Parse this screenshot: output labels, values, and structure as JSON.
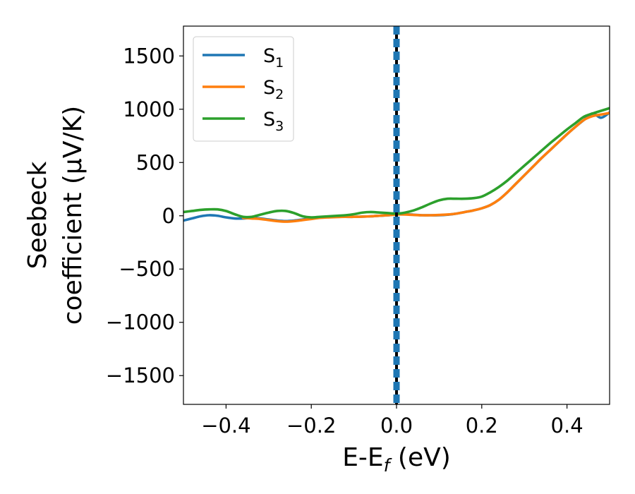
{
  "chart_data": {
    "type": "line",
    "xlabel": "E-E",
    "xlabel_sub": "f",
    "xlabel_unit": " (eV)",
    "ylabel_line1": "Seebeck",
    "ylabel_line2": "coefficient  (μV/K)",
    "xlim": [
      -0.5,
      0.5
    ],
    "ylim": [
      -1770,
      1780
    ],
    "xticks": [
      -0.4,
      -0.2,
      0.0,
      0.2,
      0.4
    ],
    "xtick_labels": [
      "−0.4",
      "−0.2",
      "0.0",
      "0.2",
      "0.4"
    ],
    "yticks": [
      -1500,
      -1000,
      -500,
      0,
      500,
      1000,
      1500
    ],
    "ytick_labels": [
      "−1500",
      "−1000",
      "−500",
      "0",
      "500",
      "1000",
      "1500"
    ],
    "grid": false,
    "legend_position": "top-left",
    "fermi_line": {
      "x": 0.0
    },
    "series": [
      {
        "name": "S",
        "sub": "1",
        "color": "#1f77b4",
        "x": [
          -0.5,
          -0.48,
          -0.46,
          -0.44,
          -0.42,
          -0.4,
          -0.38,
          -0.36,
          -0.34,
          -0.32,
          -0.3,
          -0.28,
          -0.26,
          -0.24,
          -0.22,
          -0.2,
          -0.18,
          -0.16,
          -0.14,
          -0.12,
          -0.1,
          -0.08,
          -0.06,
          -0.04,
          -0.02,
          0.0,
          0.02,
          0.04,
          0.06,
          0.08,
          0.1,
          0.12,
          0.14,
          0.16,
          0.18,
          0.2,
          0.22,
          0.24,
          0.26,
          0.28,
          0.3,
          0.32,
          0.34,
          0.36,
          0.38,
          0.4,
          0.42,
          0.44,
          0.46,
          0.48,
          0.5
        ],
        "y": [
          -45,
          -25,
          -5,
          5,
          0,
          -15,
          -25,
          -25,
          -20,
          -25,
          -35,
          -45,
          -50,
          -45,
          -35,
          -25,
          -15,
          -10,
          -10,
          -10,
          -10,
          -8,
          -5,
          0,
          5,
          15,
          15,
          10,
          5,
          5,
          5,
          10,
          20,
          35,
          50,
          70,
          100,
          150,
          220,
          300,
          380,
          460,
          540,
          615,
          690,
          765,
          835,
          900,
          960,
          920,
          970
        ]
      },
      {
        "name": "S",
        "sub": "2",
        "color": "#ff7f0e",
        "x": [
          -0.36,
          -0.34,
          -0.32,
          -0.3,
          -0.28,
          -0.26,
          -0.24,
          -0.22,
          -0.2,
          -0.18,
          -0.16,
          -0.14,
          -0.12,
          -0.1,
          -0.08,
          -0.06,
          -0.04,
          -0.02,
          0.0,
          0.02,
          0.04,
          0.06,
          0.08,
          0.1,
          0.12,
          0.14,
          0.16,
          0.18,
          0.2,
          0.22,
          0.24,
          0.26,
          0.28,
          0.3,
          0.32,
          0.34,
          0.36,
          0.38,
          0.4,
          0.42,
          0.44,
          0.46,
          0.48,
          0.5
        ],
        "y": [
          -20,
          -25,
          -30,
          -40,
          -50,
          -55,
          -50,
          -40,
          -30,
          -20,
          -15,
          -12,
          -10,
          -10,
          -8,
          -5,
          0,
          5,
          12,
          12,
          8,
          5,
          5,
          8,
          12,
          20,
          35,
          50,
          70,
          100,
          150,
          220,
          300,
          380,
          460,
          540,
          615,
          690,
          765,
          835,
          900,
          935,
          950,
          965
        ]
      },
      {
        "name": "S",
        "sub": "3",
        "color": "#2ca02c",
        "x": [
          -0.5,
          -0.48,
          -0.46,
          -0.44,
          -0.42,
          -0.4,
          -0.38,
          -0.36,
          -0.34,
          -0.32,
          -0.3,
          -0.28,
          -0.26,
          -0.24,
          -0.22,
          -0.2,
          -0.18,
          -0.16,
          -0.14,
          -0.12,
          -0.1,
          -0.08,
          -0.06,
          -0.04,
          -0.02,
          0.0,
          0.02,
          0.04,
          0.06,
          0.08,
          0.1,
          0.12,
          0.14,
          0.16,
          0.18,
          0.2,
          0.22,
          0.24,
          0.26,
          0.28,
          0.3,
          0.32,
          0.34,
          0.36,
          0.38,
          0.4,
          0.42,
          0.44,
          0.46,
          0.48,
          0.5
        ],
        "y": [
          35,
          45,
          55,
          60,
          60,
          45,
          15,
          -10,
          -10,
          10,
          30,
          45,
          45,
          25,
          -5,
          -15,
          -10,
          -5,
          0,
          5,
          15,
          30,
          35,
          30,
          25,
          20,
          30,
          50,
          80,
          115,
          145,
          160,
          160,
          160,
          165,
          180,
          220,
          270,
          330,
          400,
          470,
          540,
          610,
          680,
          745,
          810,
          870,
          930,
          960,
          985,
          1010
        ]
      }
    ]
  }
}
